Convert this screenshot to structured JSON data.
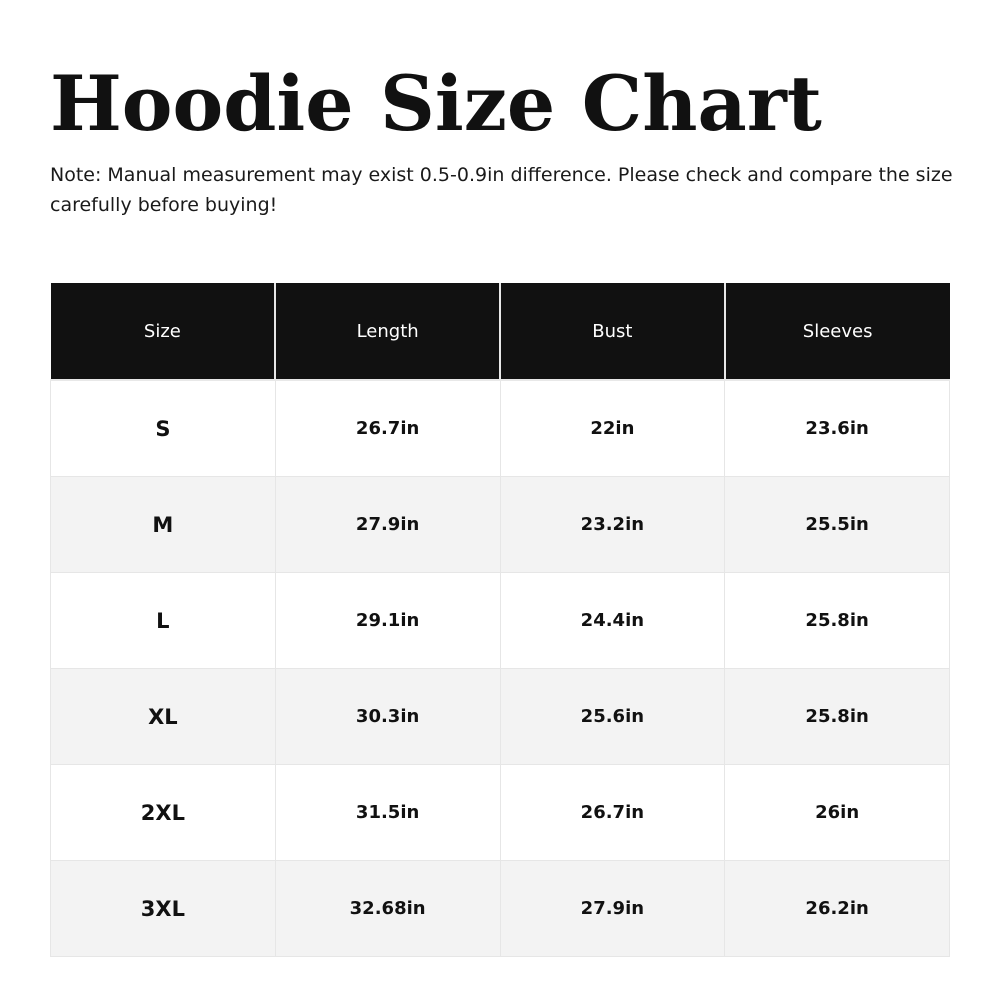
{
  "title": "Hoodie Size Chart",
  "note": "Note: Manual measurement may exist 0.5-0.9in difference. Please check and compare the size carefully before buying!",
  "colors": {
    "header_bg": "#111111",
    "header_text": "#ffffff",
    "alt_row_bg": "#f3f3f3"
  },
  "table": {
    "headers": [
      "Size",
      "Length",
      "Bust",
      "Sleeves"
    ],
    "rows": [
      [
        "S",
        "26.7in",
        "22in",
        "23.6in"
      ],
      [
        "M",
        "27.9in",
        "23.2in",
        "25.5in"
      ],
      [
        "L",
        "29.1in",
        "24.4in",
        "25.8in"
      ],
      [
        "XL",
        "30.3in",
        "25.6in",
        "25.8in"
      ],
      [
        "2XL",
        "31.5in",
        "26.7in",
        "26in"
      ],
      [
        "3XL",
        "32.68in",
        "27.9in",
        "26.2in"
      ]
    ]
  }
}
